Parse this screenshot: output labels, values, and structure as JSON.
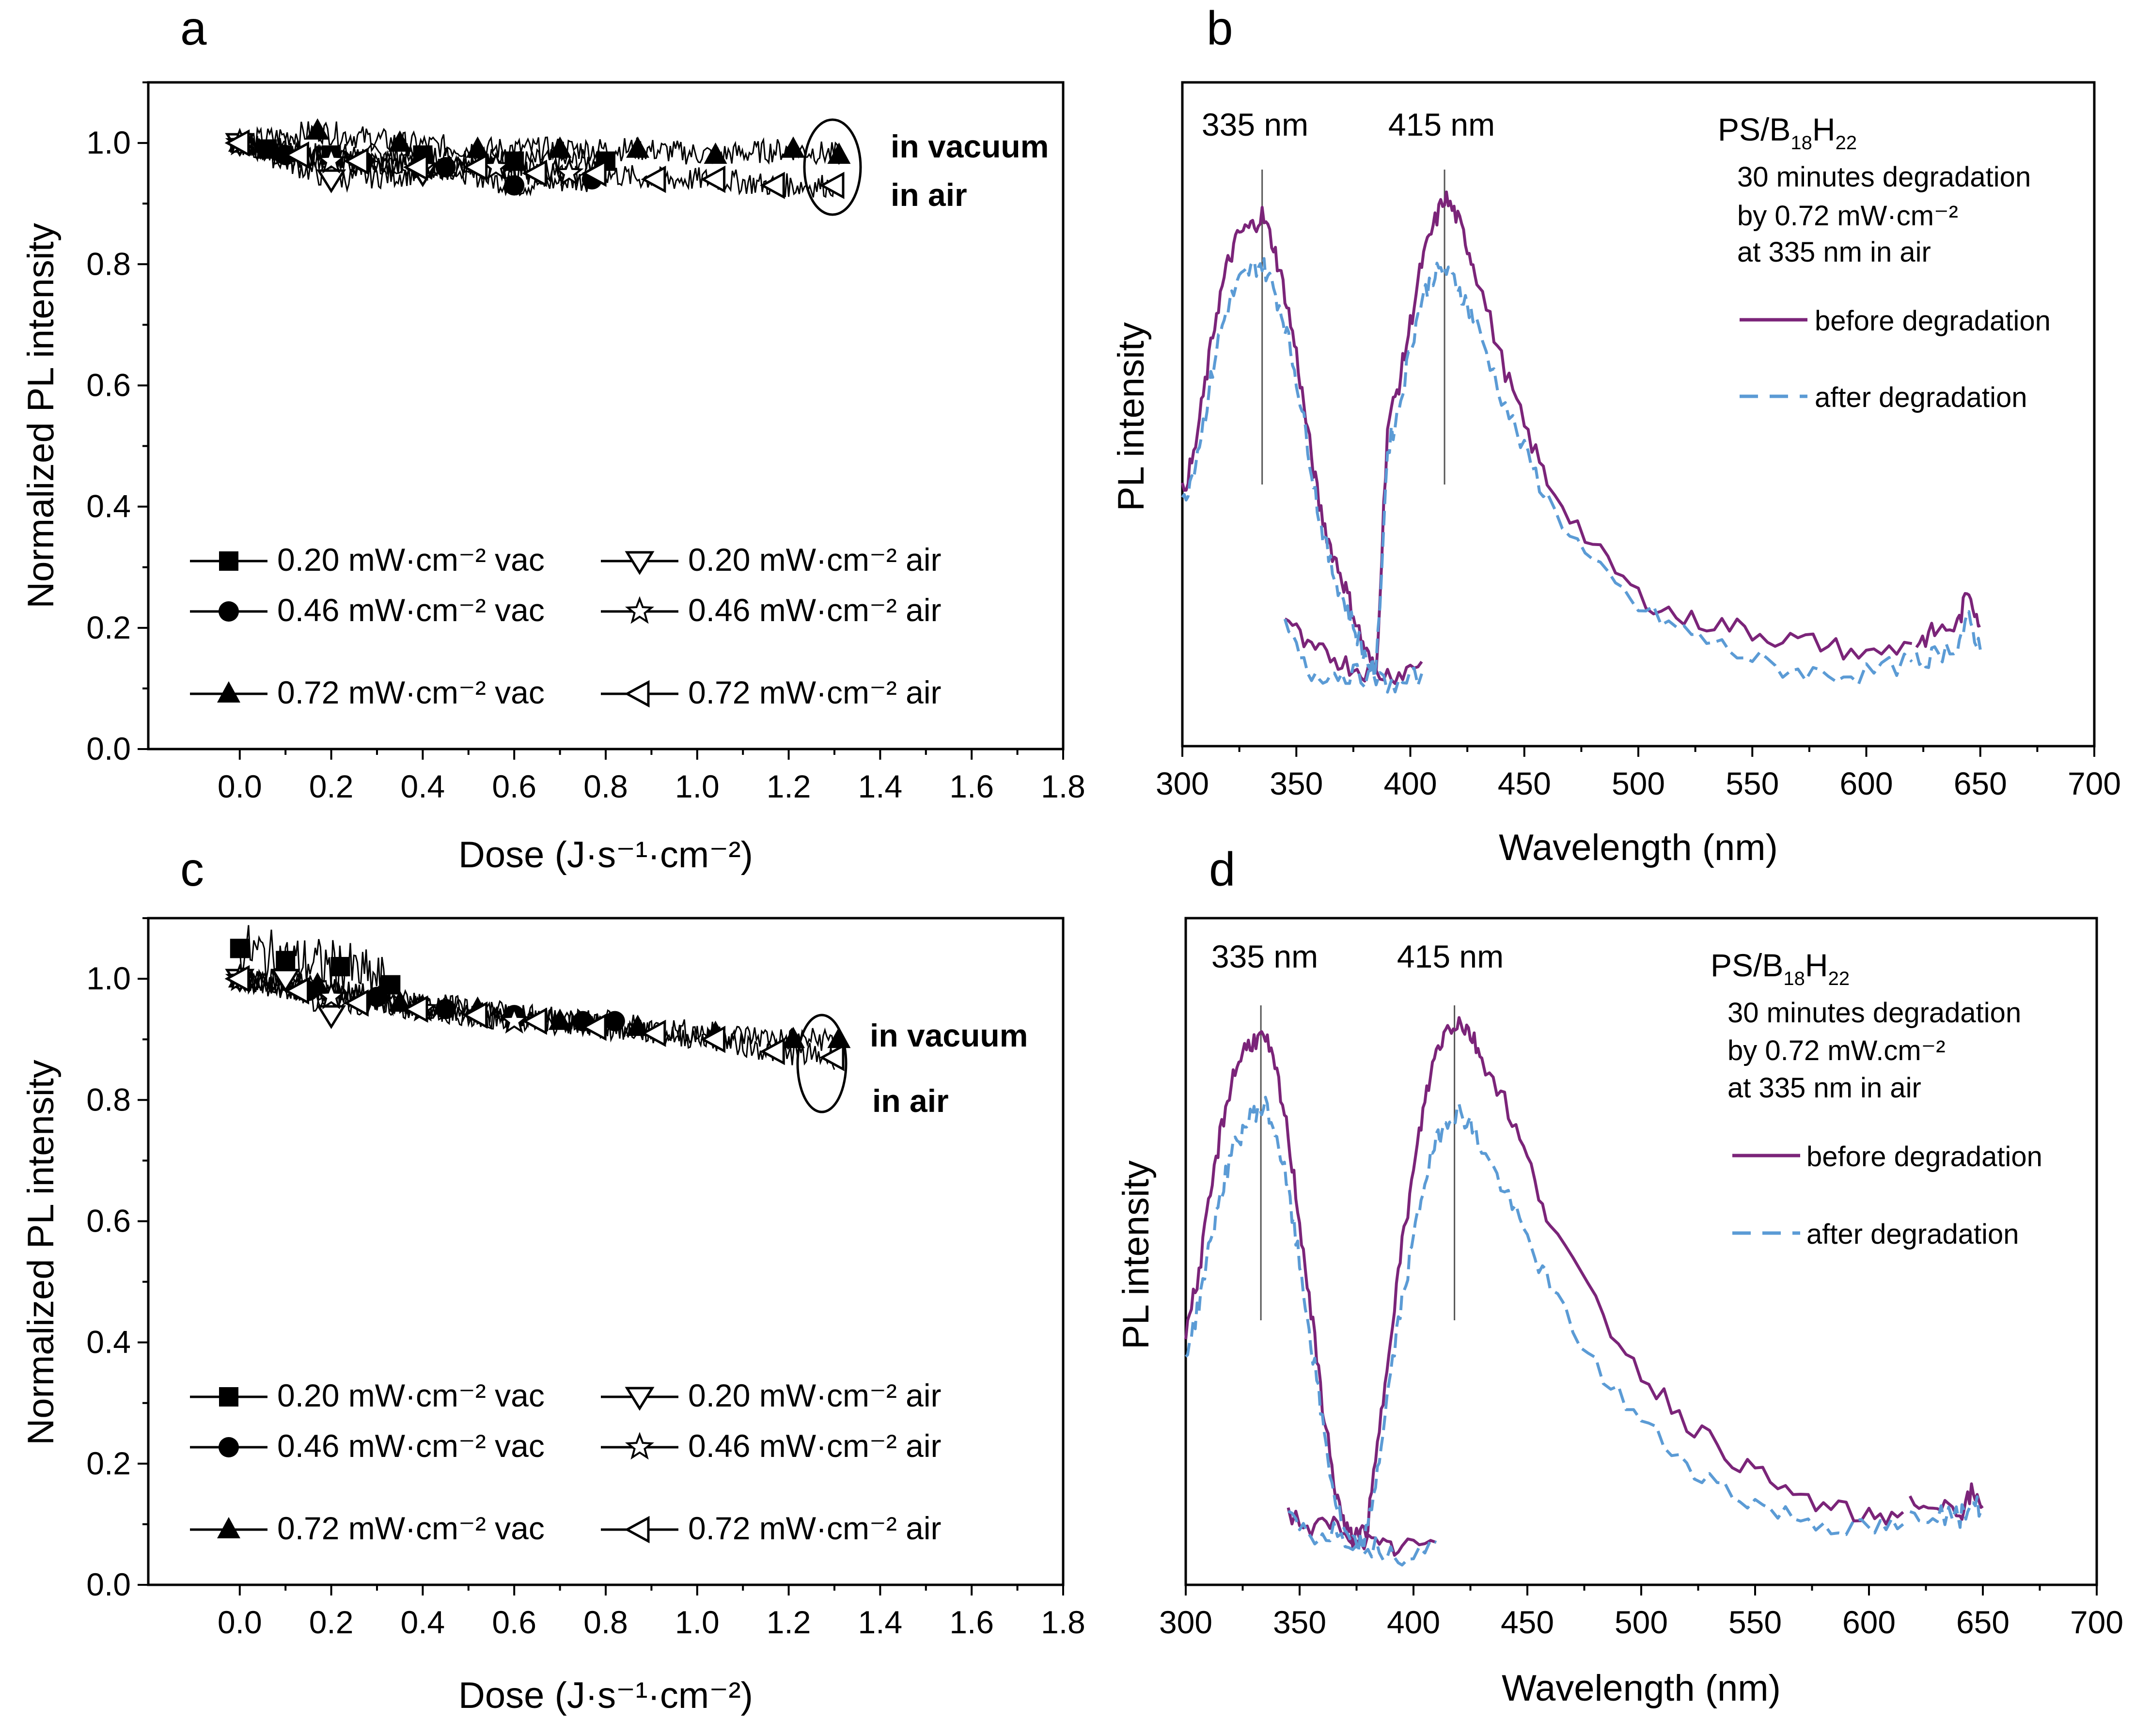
{
  "colors": {
    "before": "#7b2479",
    "after": "#5b9bd5",
    "ink": "#000000"
  },
  "chart_data": [
    {
      "id": "a",
      "type": "line",
      "panel_label": "a",
      "xlabel": "Dose (J·s⁻¹·cm⁻²)",
      "ylabel": "Normalized PL intensity",
      "xlim": [
        -0.2,
        1.8
      ],
      "ylim": [
        0.0,
        1.1
      ],
      "xticks": [
        "0.0",
        "0.2",
        "0.4",
        "0.6",
        "0.8",
        "1.0",
        "1.2",
        "1.4",
        "1.6",
        "1.8"
      ],
      "yticks": [
        "0.0",
        "0.2",
        "0.4",
        "0.6",
        "0.8",
        "1.0"
      ],
      "series": [
        {
          "name": "0.20 mW·cm⁻² vac",
          "marker": "square-filled",
          "x": [
            0,
            0.06,
            0.2,
            0.4,
            0.6,
            0.8
          ],
          "y": [
            1.0,
            0.99,
            0.98,
            0.98,
            0.97,
            0.97
          ]
        },
        {
          "name": "0.46 mW·cm⁻² vac",
          "marker": "circle-filled",
          "x": [
            0,
            0.1,
            0.27,
            0.45,
            0.6,
            0.77
          ],
          "y": [
            1.0,
            0.98,
            0.97,
            0.96,
            0.93,
            0.94
          ]
        },
        {
          "name": "0.72 mW·cm⁻² vac",
          "marker": "triangle-up-filled",
          "x": [
            0,
            0.17,
            0.35,
            0.52,
            0.7,
            0.87,
            1.04,
            1.21,
            1.31
          ],
          "y": [
            1.0,
            1.02,
            1.0,
            0.99,
            0.99,
            0.99,
            0.98,
            0.99,
            0.98
          ]
        },
        {
          "name": "0.20 mW·cm⁻² air",
          "marker": "triangle-down-open",
          "x": [
            0,
            0.2,
            0.4
          ],
          "y": [
            1.0,
            0.94,
            0.95
          ]
        },
        {
          "name": "0.46 mW·cm⁻² air",
          "marker": "star-open",
          "x": [
            0,
            0.2,
            0.4,
            0.56,
            0.72
          ],
          "y": [
            1.0,
            0.97,
            0.96,
            0.96,
            0.95
          ]
        },
        {
          "name": "0.72 mW·cm⁻² air",
          "marker": "triangle-left-open",
          "x": [
            0,
            0.13,
            0.26,
            0.39,
            0.52,
            0.65,
            0.78,
            0.91,
            1.04,
            1.17,
            1.3
          ],
          "y": [
            1.0,
            0.98,
            0.97,
            0.96,
            0.96,
            0.95,
            0.95,
            0.94,
            0.94,
            0.93,
            0.93
          ]
        }
      ],
      "annotations": [
        "in vacuum",
        "in air"
      ],
      "legend": "bottom-left"
    },
    {
      "id": "b",
      "type": "line",
      "panel_label": "b",
      "xlabel": "Wavelength (nm)",
      "ylabel": "PL intensity",
      "xlim": [
        300,
        700
      ],
      "ylim": [
        0,
        1.1
      ],
      "xticks": [
        "300",
        "350",
        "400",
        "450",
        "500",
        "550",
        "600",
        "650",
        "700"
      ],
      "peak_labels": [
        "335 nm",
        "415 nm"
      ],
      "peak_positions": [
        335,
        415
      ],
      "sample": {
        "main": "PS/B",
        "sub1": "18",
        "mid": "H",
        "sub2": "22"
      },
      "notes": [
        "30 minutes degradation",
        "by 0.72 mW·cm⁻²",
        "at 335 nm in air"
      ],
      "series": [
        {
          "name": "before degradation",
          "style": "solid",
          "segments": [
            {
              "x": [
                300,
                305,
                310,
                315,
                320,
                325,
                330,
                335,
                340,
                345,
                350,
                355,
                360,
                365,
                370,
                375,
                380,
                385,
                390,
                395,
                400,
                405,
                410,
                415,
                420,
                425,
                430,
                440,
                450,
                460,
                480,
                500,
                520,
                540,
                560,
                580,
                600,
                620
              ],
              "y": [
                0.42,
                0.48,
                0.6,
                0.72,
                0.8,
                0.85,
                0.86,
                0.88,
                0.83,
                0.75,
                0.65,
                0.52,
                0.4,
                0.33,
                0.28,
                0.22,
                0.16,
                0.12,
                0.53,
                0.6,
                0.7,
                0.8,
                0.86,
                0.91,
                0.88,
                0.83,
                0.77,
                0.64,
                0.53,
                0.44,
                0.33,
                0.25,
                0.21,
                0.2,
                0.18,
                0.17,
                0.15,
                0.17
              ]
            },
            {
              "x": [
                345,
                355,
                365,
                375,
                385,
                395,
                405
              ],
              "y": [
                0.22,
                0.16,
                0.15,
                0.13,
                0.12,
                0.12,
                0.14
              ]
            },
            {
              "x": [
                622,
                630,
                640,
                645,
                650
              ],
              "y": [
                0.17,
                0.19,
                0.2,
                0.26,
                0.2
              ]
            }
          ]
        },
        {
          "name": "after degradation",
          "style": "dashed",
          "segments": [
            {
              "x": [
                300,
                305,
                310,
                315,
                320,
                325,
                330,
                335,
                340,
                345,
                350,
                355,
                360,
                365,
                370,
                375,
                380,
                385,
                390,
                395,
                400,
                405,
                410,
                415,
                420,
                425,
                430,
                440,
                450,
                460,
                480,
                500,
                520,
                540,
                560,
                580,
                600,
                620
              ],
              "y": [
                0.4,
                0.46,
                0.55,
                0.66,
                0.73,
                0.77,
                0.79,
                0.8,
                0.76,
                0.7,
                0.61,
                0.5,
                0.38,
                0.3,
                0.25,
                0.2,
                0.15,
                0.12,
                0.49,
                0.56,
                0.66,
                0.74,
                0.78,
                0.79,
                0.77,
                0.73,
                0.69,
                0.58,
                0.49,
                0.41,
                0.3,
                0.23,
                0.19,
                0.16,
                0.13,
                0.12,
                0.12,
                0.14
              ]
            },
            {
              "x": [
                345,
                355,
                365,
                375,
                385,
                395,
                405
              ],
              "y": [
                0.2,
                0.12,
                0.12,
                0.12,
                0.11,
                0.1,
                0.12
              ]
            },
            {
              "x": [
                622,
                630,
                640,
                645,
                650
              ],
              "y": [
                0.14,
                0.15,
                0.17,
                0.21,
                0.16
              ]
            }
          ]
        }
      ],
      "legend": "right"
    },
    {
      "id": "c",
      "type": "line",
      "panel_label": "c",
      "xlabel": "Dose (J·s⁻¹·cm⁻²)",
      "ylabel": "Normalized PL intensity",
      "xlim": [
        -0.2,
        1.8
      ],
      "ylim": [
        0.0,
        1.1
      ],
      "xticks": [
        "0.0",
        "0.2",
        "0.4",
        "0.6",
        "0.8",
        "1.0",
        "1.2",
        "1.4",
        "1.6",
        "1.8"
      ],
      "yticks": [
        "0.0",
        "0.2",
        "0.4",
        "0.6",
        "0.8",
        "1.0"
      ],
      "series": [
        {
          "name": "0.20 mW·cm⁻² vac",
          "marker": "square-filled",
          "x": [
            0,
            0.1,
            0.22,
            0.33
          ],
          "y": [
            1.05,
            1.03,
            1.02,
            0.99
          ]
        },
        {
          "name": "0.46 mW·cm⁻² vac",
          "marker": "circle-filled",
          "x": [
            0,
            0.15,
            0.3,
            0.45,
            0.6,
            0.75,
            0.82
          ],
          "y": [
            1.0,
            0.98,
            0.97,
            0.95,
            0.94,
            0.93,
            0.93
          ]
        },
        {
          "name": "0.72 mW·cm⁻² vac",
          "marker": "triangle-up-filled",
          "x": [
            0,
            0.17,
            0.35,
            0.52,
            0.7,
            0.87,
            1.04,
            1.21,
            1.31
          ],
          "y": [
            1.0,
            0.99,
            0.96,
            0.95,
            0.93,
            0.92,
            0.91,
            0.9,
            0.9
          ]
        },
        {
          "name": "0.20 mW·cm⁻² air",
          "marker": "triangle-down-open",
          "x": [
            0,
            0.1,
            0.2
          ],
          "y": [
            1.0,
            1.0,
            0.94
          ]
        },
        {
          "name": "0.46 mW·cm⁻² air",
          "marker": "star-open",
          "x": [
            0,
            0.2,
            0.4,
            0.6
          ],
          "y": [
            1.0,
            0.97,
            0.95,
            0.93
          ]
        },
        {
          "name": "0.72 mW·cm⁻² air",
          "marker": "triangle-left-open",
          "x": [
            0,
            0.13,
            0.26,
            0.39,
            0.52,
            0.65,
            0.78,
            0.91,
            1.04,
            1.17,
            1.3
          ],
          "y": [
            1.0,
            0.98,
            0.96,
            0.95,
            0.94,
            0.93,
            0.92,
            0.91,
            0.9,
            0.88,
            0.87
          ]
        }
      ],
      "annotations": [
        "in vacuum",
        "in air"
      ],
      "legend": "bottom-left"
    },
    {
      "id": "d",
      "type": "line",
      "panel_label": "d",
      "xlabel": "Wavelength (nm)",
      "ylabel": "PL intensity",
      "xlim": [
        300,
        700
      ],
      "ylim": [
        0,
        1.1
      ],
      "xticks": [
        "300",
        "350",
        "400",
        "450",
        "500",
        "550",
        "600",
        "650",
        "700"
      ],
      "peak_labels": [
        "335 nm",
        "415 nm"
      ],
      "peak_positions": [
        333,
        418
      ],
      "sample": {
        "main": "PS/B",
        "sub1": "18",
        "mid": "H",
        "sub2": "22"
      },
      "notes": [
        "30 minutes degradation",
        "by 0.72 mW.cm⁻²",
        "at 335 nm in air"
      ],
      "series": [
        {
          "name": "before degradation",
          "style": "solid",
          "segments": [
            {
              "x": [
                300,
                305,
                310,
                315,
                320,
                325,
                330,
                335,
                340,
                345,
                350,
                355,
                360,
                365,
                370,
                375,
                380,
                385,
                390,
                395,
                400,
                405,
                410,
                415,
                420,
                425,
                430,
                440,
                450,
                460,
                480,
                500,
                520,
                540,
                560,
                580,
                600,
                615
              ],
              "y": [
                0.42,
                0.5,
                0.62,
                0.74,
                0.83,
                0.88,
                0.9,
                0.9,
                0.84,
                0.74,
                0.6,
                0.45,
                0.3,
                0.17,
                0.09,
                0.07,
                0.1,
                0.25,
                0.42,
                0.56,
                0.68,
                0.8,
                0.88,
                0.92,
                0.93,
                0.91,
                0.87,
                0.8,
                0.7,
                0.6,
                0.46,
                0.35,
                0.27,
                0.21,
                0.16,
                0.13,
                0.11,
                0.12
              ]
            },
            {
              "x": [
                345,
                355,
                365,
                375,
                385,
                395,
                410
              ],
              "y": [
                0.12,
                0.09,
                0.1,
                0.08,
                0.06,
                0.06,
                0.07
              ]
            },
            {
              "x": [
                618,
                630,
                640,
                645,
                650
              ],
              "y": [
                0.13,
                0.14,
                0.12,
                0.15,
                0.13
              ]
            }
          ]
        },
        {
          "name": "after degradation",
          "style": "dashed",
          "segments": [
            {
              "x": [
                300,
                305,
                310,
                315,
                320,
                325,
                330,
                335,
                340,
                345,
                350,
                355,
                360,
                365,
                370,
                375,
                380,
                385,
                390,
                395,
                400,
                405,
                410,
                415,
                420,
                425,
                430,
                440,
                450,
                460,
                480,
                500,
                520,
                540,
                560,
                580,
                600,
                615
              ],
              "y": [
                0.38,
                0.45,
                0.55,
                0.64,
                0.71,
                0.75,
                0.78,
                0.79,
                0.74,
                0.65,
                0.53,
                0.4,
                0.27,
                0.15,
                0.08,
                0.06,
                0.09,
                0.21,
                0.35,
                0.47,
                0.57,
                0.67,
                0.73,
                0.77,
                0.78,
                0.76,
                0.72,
                0.65,
                0.57,
                0.49,
                0.36,
                0.27,
                0.2,
                0.15,
                0.12,
                0.1,
                0.09,
                0.1
              ]
            },
            {
              "x": [
                345,
                355,
                365,
                375,
                385,
                395,
                410
              ],
              "y": [
                0.11,
                0.08,
                0.09,
                0.07,
                0.06,
                0.05,
                0.07
              ]
            },
            {
              "x": [
                618,
                630,
                640,
                645,
                650
              ],
              "y": [
                0.11,
                0.12,
                0.11,
                0.14,
                0.12
              ]
            }
          ]
        }
      ],
      "legend": "right"
    }
  ]
}
